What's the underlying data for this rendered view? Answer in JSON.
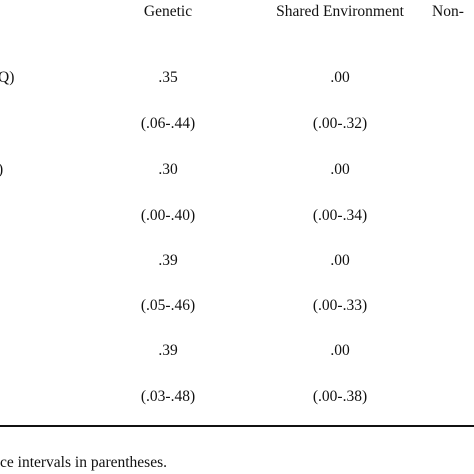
{
  "table": {
    "header": [
      "Genetic",
      "Shared Environment",
      "Non-"
    ],
    "rows": [
      [
        "Q)",
        ".35",
        ".00"
      ],
      [
        null,
        "(.06-.44)",
        "(.00-.32)"
      ],
      [
        ")",
        ".30",
        ".00"
      ],
      [
        null,
        "(.00-.40)",
        "(.00-.34)"
      ],
      [
        null,
        ".39",
        ".00"
      ],
      [
        null,
        "(.05-.46)",
        "(.00-.33)"
      ],
      [
        null,
        ".39",
        ".00"
      ],
      [
        null,
        "(.03-.48)",
        "(.00-.38)"
      ]
    ],
    "note": "ce intervals in parentheses."
  }
}
